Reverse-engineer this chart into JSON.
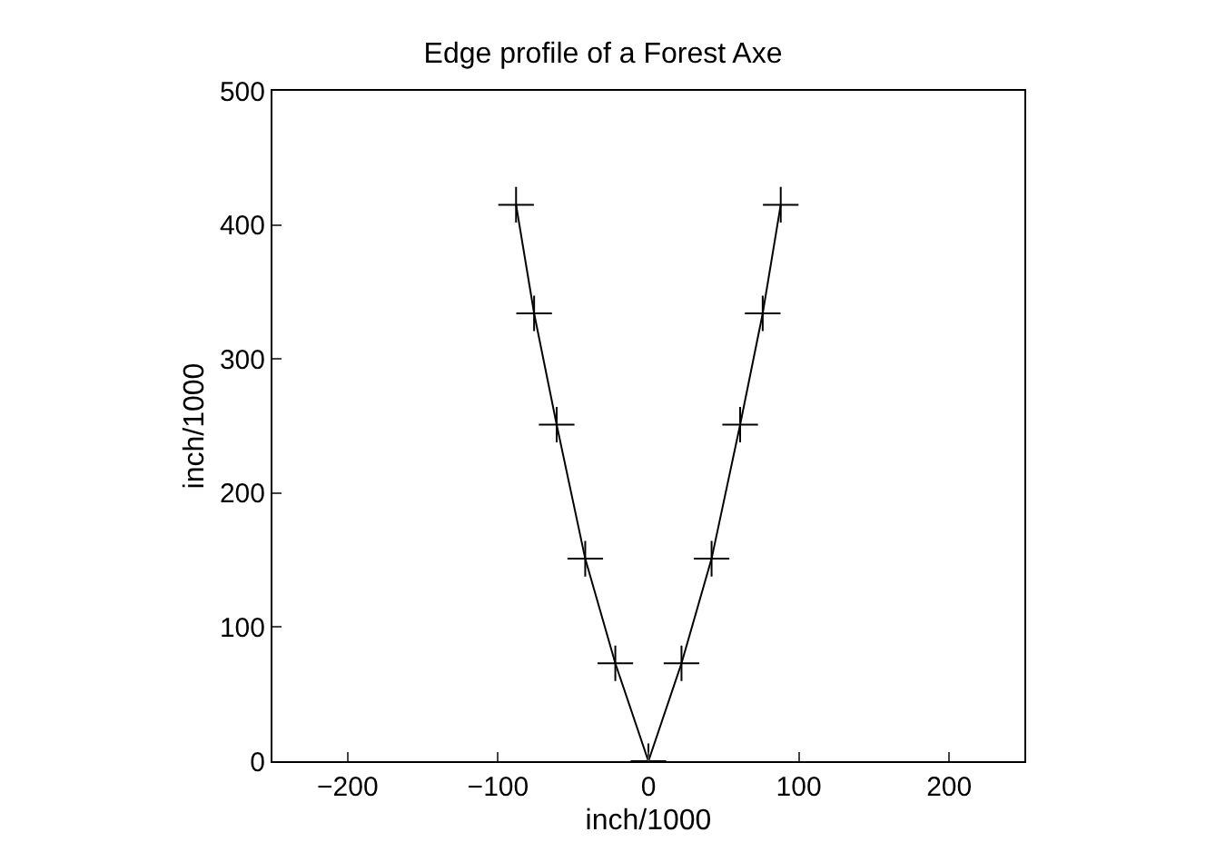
{
  "chart_data": {
    "type": "line",
    "title": "Edge profile of a Forest Axe",
    "xlabel": "inch/1000",
    "ylabel": "inch/1000",
    "x": [
      -88,
      -76,
      -61,
      -42,
      -22,
      0,
      22,
      42,
      61,
      76,
      88
    ],
    "series": [
      {
        "color": "#000000",
        "values": [
          415,
          334,
          251,
          151,
          73,
          0,
          73,
          151,
          251,
          334,
          415
        ]
      }
    ],
    "xlim": [
      -250,
      250
    ],
    "xticks": [
      -200,
      -100,
      0,
      100,
      200
    ],
    "ylim": [
      0,
      500
    ],
    "yticks": [
      0,
      100,
      200,
      300,
      400,
      500
    ],
    "legend": false,
    "marker": "cross",
    "line_style": "solid"
  }
}
